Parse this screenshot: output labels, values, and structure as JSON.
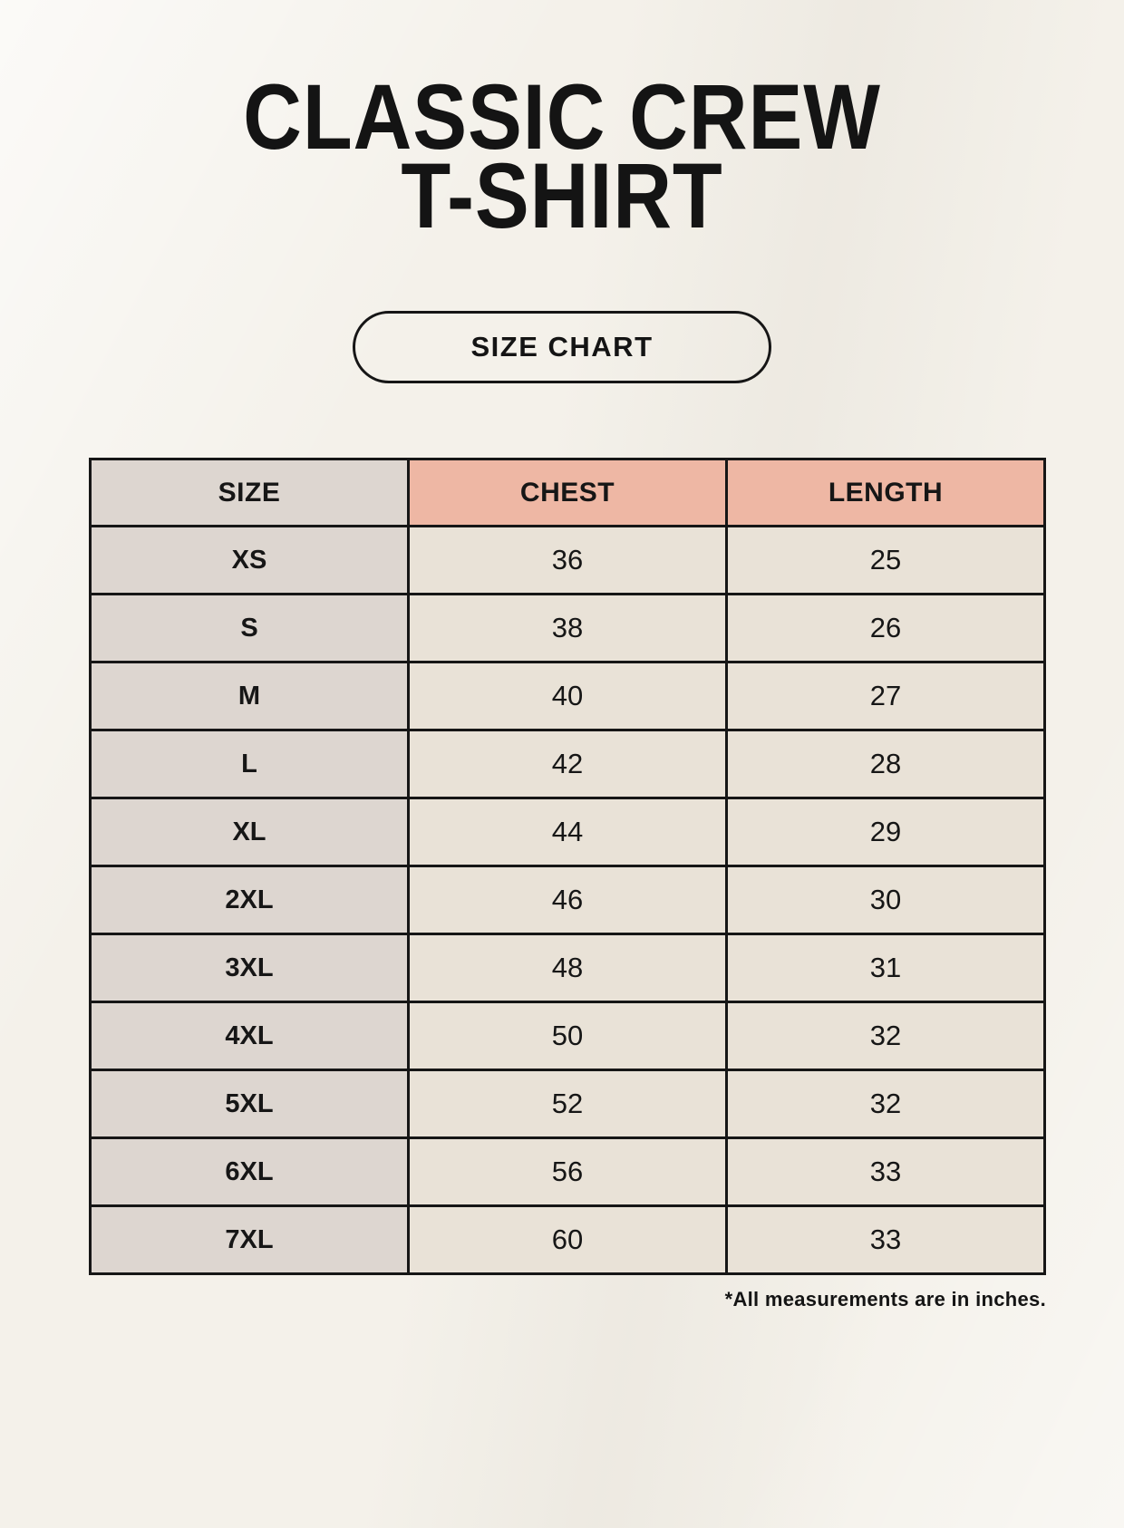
{
  "header": {
    "title_line1": "CLASSIC CREW",
    "title_line2": "T-SHIRT",
    "badge_label": "SIZE CHART"
  },
  "table": {
    "headers": [
      "SIZE",
      "CHEST",
      "LENGTH"
    ],
    "rows": [
      [
        "XS",
        "36",
        "25"
      ],
      [
        "S",
        "38",
        "26"
      ],
      [
        "M",
        "40",
        "27"
      ],
      [
        "L",
        "42",
        "28"
      ],
      [
        "XL",
        "44",
        "29"
      ],
      [
        "2XL",
        "46",
        "30"
      ],
      [
        "3XL",
        "48",
        "31"
      ],
      [
        "4XL",
        "50",
        "32"
      ],
      [
        "5XL",
        "52",
        "32"
      ],
      [
        "6XL",
        "56",
        "33"
      ],
      [
        "7XL",
        "60",
        "33"
      ]
    ]
  },
  "footer": {
    "note": "*All measurements are in inches."
  },
  "colors": {
    "background": "#f4f1ea",
    "accent_header": "#eeb7a4",
    "size_column": "#ddd6d0",
    "data_cell": "#e9e2d7",
    "border": "#161616",
    "text": "#141414"
  },
  "chart_data": {
    "type": "table",
    "title": "CLASSIC CREW T-SHIRT",
    "subtitle": "SIZE CHART",
    "columns": [
      "SIZE",
      "CHEST",
      "LENGTH"
    ],
    "units": "inches",
    "rows": [
      {
        "size": "XS",
        "chest": 36,
        "length": 25
      },
      {
        "size": "S",
        "chest": 38,
        "length": 26
      },
      {
        "size": "M",
        "chest": 40,
        "length": 27
      },
      {
        "size": "L",
        "chest": 42,
        "length": 28
      },
      {
        "size": "XL",
        "chest": 44,
        "length": 29
      },
      {
        "size": "2XL",
        "chest": 46,
        "length": 30
      },
      {
        "size": "3XL",
        "chest": 48,
        "length": 31
      },
      {
        "size": "4XL",
        "chest": 50,
        "length": 32
      },
      {
        "size": "5XL",
        "chest": 52,
        "length": 32
      },
      {
        "size": "6XL",
        "chest": 56,
        "length": 33
      },
      {
        "size": "7XL",
        "chest": 60,
        "length": 33
      }
    ],
    "note": "*All measurements are in inches."
  }
}
